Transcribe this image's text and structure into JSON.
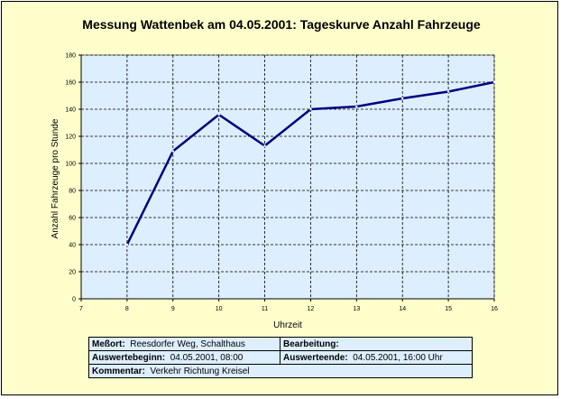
{
  "chart_data": {
    "type": "line",
    "title": "Messung Wattenbek am 04.05.2001: Tageskurve Anzahl Fahrzeuge",
    "xlabel": "Uhrzeit",
    "ylabel": "Anzahl Fahrzeuge pro Stunde",
    "xlim": [
      7,
      16
    ],
    "ylim": [
      0,
      180
    ],
    "xticks": [
      7,
      8,
      9,
      10,
      11,
      12,
      13,
      14,
      15,
      16
    ],
    "yticks": [
      0,
      20,
      40,
      60,
      80,
      100,
      120,
      140,
      160,
      180
    ],
    "grid": true,
    "series": [
      {
        "x": [
          8,
          9,
          10,
          11,
          12,
          13,
          14,
          15,
          16
        ],
        "y": [
          40,
          109,
          136,
          113,
          140,
          142,
          148,
          153,
          160
        ]
      }
    ],
    "colors": {
      "line": "#000080",
      "plot_bg": "#ddeeff",
      "chart_bg": "#ffffcc"
    }
  },
  "info": {
    "messort_label": "Meßort:",
    "messort_value": "Reesdorfer Weg, Schalthaus",
    "bearbeitung_label": "Bearbeitung:",
    "bearbeitung_value": "",
    "auswertebeginn_label": "Auswertebeginn:",
    "auswertebeginn_value": "04.05.2001, 08:00",
    "auswerteende_label": "Auswerteende:",
    "auswerteende_value": "04.05.2001, 16:00 Uhr",
    "kommentar_label": "Kommentar:",
    "kommentar_value": "Verkehr Richtung Kreisel"
  }
}
